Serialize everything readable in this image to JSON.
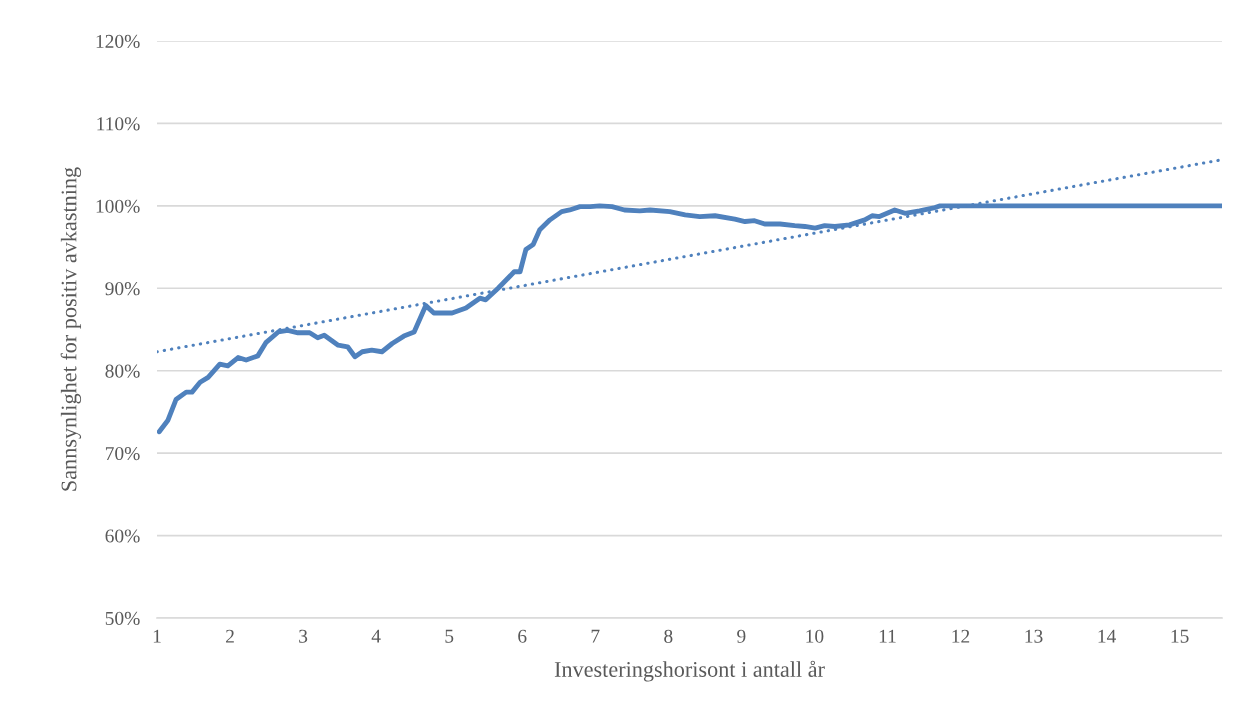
{
  "chart_data": {
    "type": "line",
    "xlabel": "Investeringshorisont i antall år",
    "ylabel": "Sannsynlighet for positiv avkastning",
    "xlim": [
      1,
      15.58
    ],
    "xticks": [
      1,
      2,
      3,
      4,
      5,
      6,
      7,
      8,
      9,
      10,
      11,
      12,
      13,
      14,
      15
    ],
    "ylim": [
      50,
      120
    ],
    "yticks": [
      {
        "value": 50,
        "label": "50%"
      },
      {
        "value": 60,
        "label": "60%"
      },
      {
        "value": 70,
        "label": "70%"
      },
      {
        "value": 80,
        "label": "80%"
      },
      {
        "value": 90,
        "label": "90%"
      },
      {
        "value": 100,
        "label": "100%"
      },
      {
        "value": 110,
        "label": "110%"
      },
      {
        "value": 120,
        "label": "120%"
      }
    ],
    "grid": "y",
    "series": [
      {
        "color": "#4f81bd",
        "line_style": "solid",
        "x": [
          1.03,
          1.15,
          1.26,
          1.4,
          1.48,
          1.59,
          1.7,
          1.86,
          1.97,
          2.11,
          2.22,
          2.38,
          2.49,
          2.66,
          2.79,
          2.93,
          3.09,
          3.2,
          3.29,
          3.48,
          3.61,
          3.71,
          3.81,
          3.94,
          4.08,
          4.22,
          4.38,
          4.52,
          4.68,
          4.79,
          5.04,
          5.23,
          5.42,
          5.5,
          5.67,
          5.78,
          5.89,
          5.97,
          6.05,
          6.15,
          6.24,
          6.38,
          6.54,
          6.65,
          6.79,
          6.93,
          7.06,
          7.23,
          7.4,
          7.61,
          7.75,
          8.02,
          8.23,
          8.43,
          8.64,
          8.91,
          9.05,
          9.18,
          9.32,
          9.53,
          9.73,
          9.87,
          10.01,
          10.14,
          10.28,
          10.48,
          10.69,
          10.79,
          10.89,
          11.1,
          11.24,
          11.44,
          11.65,
          11.72,
          12.0,
          12.2,
          15.58
        ],
        "values": [
          72.6,
          74.0,
          76.5,
          77.4,
          77.4,
          78.6,
          79.2,
          80.8,
          80.6,
          81.6,
          81.3,
          81.8,
          83.4,
          84.7,
          84.9,
          84.6,
          84.6,
          84.0,
          84.3,
          83.1,
          82.9,
          81.7,
          82.3,
          82.5,
          82.3,
          83.3,
          84.2,
          84.7,
          87.9,
          87.0,
          87.0,
          87.6,
          88.8,
          88.6,
          90.0,
          91.0,
          92.0,
          92.0,
          94.7,
          95.3,
          97.1,
          98.3,
          99.3,
          99.5,
          99.9,
          99.9,
          100.0,
          99.9,
          99.5,
          99.4,
          99.5,
          99.3,
          98.9,
          98.7,
          98.8,
          98.4,
          98.1,
          98.2,
          97.8,
          97.8,
          97.6,
          97.5,
          97.3,
          97.6,
          97.5,
          97.7,
          98.3,
          98.8,
          98.7,
          99.5,
          99.1,
          99.4,
          99.8,
          100.0,
          100.0,
          100.0,
          100.0
        ]
      },
      {
        "color": "#4f81bd",
        "line_style": "dotted",
        "x": [
          1,
          15.58
        ],
        "values": [
          82.3,
          105.6
        ]
      }
    ]
  }
}
